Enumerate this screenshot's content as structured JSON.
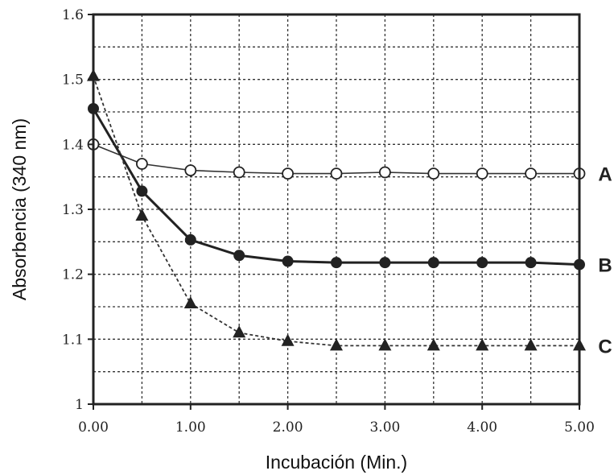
{
  "chart_data": {
    "type": "line",
    "title": "",
    "xlabel": "Incubación (Min.)",
    "ylabel": "Absorbencia (340 nm)",
    "xlim": [
      0,
      5
    ],
    "ylim": [
      1,
      1.6
    ],
    "x_ticks": [
      0,
      1,
      2,
      3,
      4,
      5
    ],
    "x_tick_labels": [
      "0.00",
      "1.00",
      "2.00",
      "3.00",
      "4.00",
      "5.00"
    ],
    "y_ticks": [
      1,
      1.1,
      1.2,
      1.3,
      1.4,
      1.5,
      1.6
    ],
    "y_tick_labels": [
      "1",
      "1.1",
      "1.2",
      "1.3",
      "1.4",
      "1.5",
      "1.6"
    ],
    "grid": true,
    "legend": "series labels at right end of lines",
    "x": [
      0,
      0.5,
      1,
      1.5,
      2,
      2.5,
      3,
      3.5,
      4,
      4.5,
      5
    ],
    "series": [
      {
        "name": "A",
        "marker": "open-circle",
        "line": "solid-thin",
        "values": [
          1.4,
          1.37,
          1.36,
          1.357,
          1.355,
          1.355,
          1.357,
          1.355,
          1.355,
          1.355,
          1.355
        ]
      },
      {
        "name": "B",
        "marker": "filled-circle",
        "line": "solid-thick",
        "values": [
          1.455,
          1.328,
          1.253,
          1.229,
          1.22,
          1.218,
          1.218,
          1.218,
          1.218,
          1.218,
          1.215
        ]
      },
      {
        "name": "C",
        "marker": "filled-triangle",
        "line": "dashed",
        "values": [
          1.505,
          1.29,
          1.155,
          1.11,
          1.097,
          1.09,
          1.09,
          1.09,
          1.09,
          1.09,
          1.09
        ]
      }
    ]
  }
}
